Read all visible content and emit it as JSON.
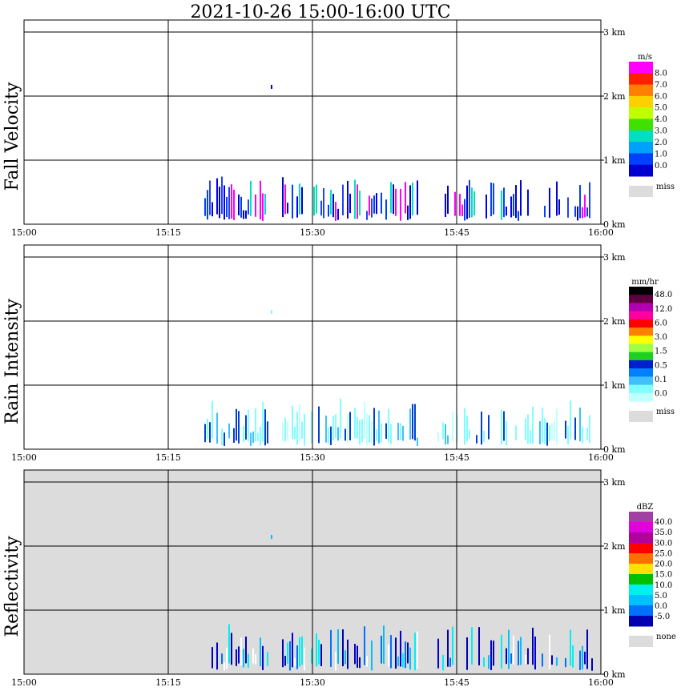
{
  "title": "2021-10-26   15:00-16:00 UTC",
  "x_ticks": [
    "15:00",
    "15:15",
    "15:30",
    "15:45",
    "16:00"
  ],
  "y_ticks": [
    "0 km",
    "1 km",
    "2 km",
    "3 km"
  ],
  "panels": [
    {
      "label": "Fall Velocity",
      "background": "#ffffff",
      "legend": {
        "unit": "m/s",
        "labels": [
          "8.0",
          "7.0",
          "6.0",
          "5.0",
          "4.0",
          "3.0",
          "2.0",
          "1.0",
          "0.0"
        ],
        "colors": [
          "#ff00ff",
          "#ff2000",
          "#ff8000",
          "#ffd000",
          "#c0ff00",
          "#40e000",
          "#00e0c0",
          "#00a0ff",
          "#0040ff",
          "#0000d0"
        ],
        "miss_label": "miss",
        "miss_color": "#dcdcdc"
      }
    },
    {
      "label": "Rain Intensity",
      "background": "#ffffff",
      "legend": {
        "unit": "mm/hr",
        "labels": [
          "48.0",
          "12.0",
          "6.0",
          "3.0",
          "1.5",
          "0.5",
          "0.1",
          "0.0"
        ],
        "colors": [
          "#000000",
          "#600040",
          "#b000b0",
          "#ff00a0",
          "#ff0000",
          "#ff8000",
          "#ffff00",
          "#a0ff40",
          "#20d020",
          "#0020d0",
          "#0080ff",
          "#40c0ff",
          "#80ffff",
          "#c0ffff"
        ],
        "miss_label": "miss",
        "miss_color": "#dcdcdc"
      }
    },
    {
      "label": "Reflectivity",
      "background": "#dcdcdc",
      "legend": {
        "unit": "dBZ",
        "labels": [
          "40.0",
          "35.0",
          "30.0",
          "25.0",
          "20.0",
          "15.0",
          "10.0",
          "5.0",
          "0.0",
          "-5.0"
        ],
        "colors": [
          "#a040a0",
          "#e000e0",
          "#b000a0",
          "#ff0000",
          "#ff7000",
          "#ffe000",
          "#00c000",
          "#00f0f0",
          "#00c0ff",
          "#0070ff",
          "#0000b0"
        ],
        "miss_label": "none",
        "miss_color": "#dcdcdc"
      }
    }
  ]
}
